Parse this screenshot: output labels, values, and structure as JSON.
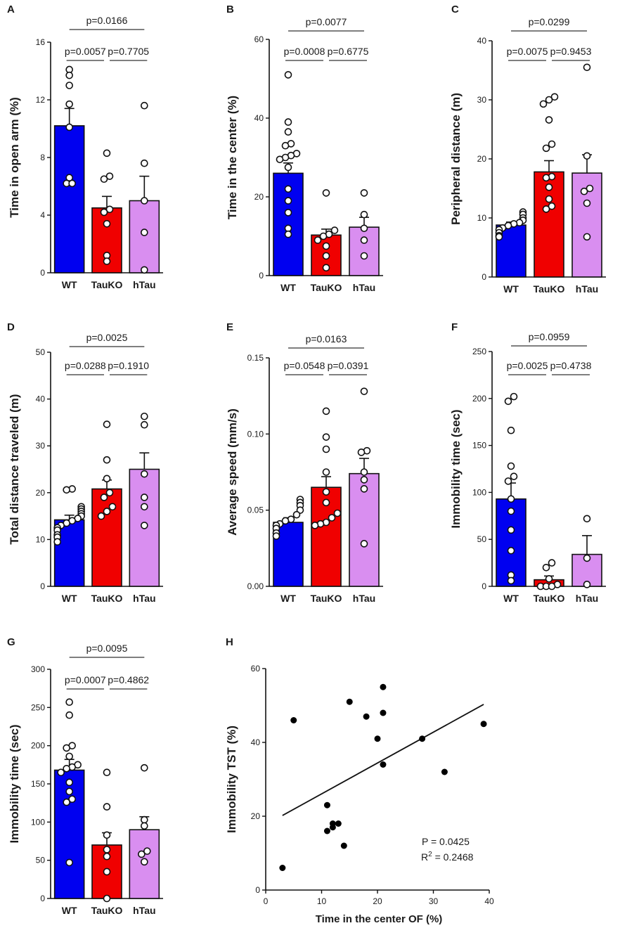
{
  "colors": {
    "wt": "#0000f0",
    "tauko": "#f00000",
    "htau": "#d98ef0",
    "line": "#111111",
    "bracket": "#555555"
  },
  "chart_data": [
    {
      "panel": "A",
      "type": "bar",
      "ylabel": "Time in open arm (%)",
      "ylim": [
        0,
        16
      ],
      "yticks": [
        0,
        4,
        8,
        12,
        16
      ],
      "ytick_labels": [
        "0",
        "4",
        "8",
        "12",
        "16"
      ],
      "categories": [
        "WT",
        "TauKO",
        "hTau"
      ],
      "values": [
        10.2,
        4.5,
        5.0
      ],
      "errors": [
        1.2,
        0.8,
        1.7
      ],
      "points": [
        [
          14.1,
          13.7,
          13.0,
          11.7,
          10.1,
          6.6,
          6.2,
          6.2
        ],
        [
          8.3,
          6.7,
          6.5,
          4.4,
          4.2,
          3.4,
          1.2,
          0.8
        ],
        [
          11.6,
          7.6,
          5.0,
          2.8,
          0.2
        ]
      ],
      "comparisons": [
        {
          "from": 0,
          "to": 2,
          "label": "p=0.0166"
        },
        {
          "from": 0,
          "to": 1,
          "label": "p=0.0057"
        },
        {
          "from": 1,
          "to": 2,
          "label": "p=0.7705"
        }
      ]
    },
    {
      "panel": "B",
      "type": "bar",
      "ylabel": "Time in the center (%)",
      "ylim": [
        0,
        60
      ],
      "yticks": [
        0,
        20,
        40,
        60
      ],
      "ytick_labels": [
        "0",
        "20",
        "40",
        "60"
      ],
      "categories": [
        "WT",
        "TauKO",
        "hTau"
      ],
      "values": [
        26.0,
        10.3,
        12.3
      ],
      "errors": [
        2.6,
        1.5,
        2.5
      ],
      "points": [
        [
          51.0,
          39.0,
          36.5,
          33.5,
          33.0,
          31.0,
          30.5,
          30.0,
          29.5,
          27.5,
          22.0,
          19.0,
          16.0,
          12.0,
          10.5
        ],
        [
          21.0,
          11.5,
          10.5,
          10.0,
          9.0,
          7.5,
          5.0,
          2.0
        ],
        [
          21.0,
          15.5,
          12.0,
          9.0,
          5.0
        ]
      ],
      "comparisons": [
        {
          "from": 0,
          "to": 2,
          "label": "p=0.0077"
        },
        {
          "from": 0,
          "to": 1,
          "label": "p=0.0008"
        },
        {
          "from": 1,
          "to": 2,
          "label": "p=0.6775"
        }
      ]
    },
    {
      "panel": "C",
      "type": "bar",
      "ylabel": "Peripheral distance (m)",
      "ylim": [
        0,
        40
      ],
      "yticks": [
        0,
        10,
        20,
        30,
        40
      ],
      "ytick_labels": [
        "0",
        "10",
        "20",
        "30",
        "40"
      ],
      "categories": [
        "WT",
        "TauKO",
        "hTau"
      ],
      "values": [
        8.8,
        17.8,
        17.6
      ],
      "errors": [
        0.5,
        1.9,
        3.1
      ],
      "points": [
        [
          11.0,
          10.6,
          10.0,
          9.6,
          9.2,
          9.0,
          8.7,
          8.3,
          8.0,
          7.5,
          7.0,
          6.8
        ],
        [
          30.5,
          30.0,
          29.3,
          26.6,
          22.5,
          21.8,
          17.0,
          16.8,
          15.2,
          13.2,
          12.0,
          11.5
        ],
        [
          35.5,
          20.5,
          15.0,
          14.5,
          12.5,
          6.8
        ]
      ],
      "comparisons": [
        {
          "from": 0,
          "to": 2,
          "label": "p=0.0299"
        },
        {
          "from": 0,
          "to": 1,
          "label": "p=0.0075"
        },
        {
          "from": 1,
          "to": 2,
          "label": "p=0.9453"
        }
      ]
    },
    {
      "panel": "D",
      "type": "bar",
      "ylabel": "Total distance traveled (m)",
      "ylim": [
        0,
        50
      ],
      "yticks": [
        0,
        10,
        20,
        30,
        40,
        50
      ],
      "ytick_labels": [
        "0",
        "10",
        "20",
        "30",
        "40",
        "50"
      ],
      "categories": [
        "WT",
        "TauKO",
        "hTau"
      ],
      "values": [
        14.2,
        20.8,
        25.0
      ],
      "errors": [
        1.0,
        1.9,
        3.5
      ],
      "points": [
        [
          20.8,
          20.6,
          17.0,
          16.5,
          16.0,
          15.5,
          15.0,
          14.5,
          14.0,
          13.5,
          13.0,
          12.5,
          12.0,
          11.0,
          10.5,
          9.5
        ],
        [
          34.6,
          27.0,
          23.0,
          20.0,
          19.0,
          17.0,
          16.0,
          15.0
        ],
        [
          36.3,
          34.5,
          24.0,
          19.0,
          17.0,
          13.0
        ]
      ],
      "comparisons": [
        {
          "from": 0,
          "to": 2,
          "label": "p=0.0025"
        },
        {
          "from": 0,
          "to": 1,
          "label": "p=0.0288"
        },
        {
          "from": 1,
          "to": 2,
          "label": "p=0.1910"
        }
      ]
    },
    {
      "panel": "E",
      "type": "bar",
      "ylabel": "Average speed (mm/s)",
      "ylim": [
        0,
        0.15
      ],
      "yticks": [
        0,
        0.05,
        0.1,
        0.15
      ],
      "ytick_labels": [
        "0.00",
        "0.05",
        "0.10",
        "0.15"
      ],
      "categories": [
        "WT",
        "TauKO",
        "hTau"
      ],
      "values": [
        0.042,
        0.065,
        0.074
      ],
      "errors": [
        0.003,
        0.007,
        0.01
      ],
      "points": [
        [
          0.057,
          0.055,
          0.053,
          0.05,
          0.047,
          0.044,
          0.043,
          0.041,
          0.04,
          0.038,
          0.035,
          0.033
        ],
        [
          0.115,
          0.098,
          0.09,
          0.075,
          0.062,
          0.055,
          0.048,
          0.045,
          0.042,
          0.041,
          0.04
        ],
        [
          0.128,
          0.089,
          0.088,
          0.075,
          0.07,
          0.064,
          0.028
        ]
      ],
      "comparisons": [
        {
          "from": 0,
          "to": 2,
          "label": "p=0.0163"
        },
        {
          "from": 0,
          "to": 1,
          "label": "p=0.0548"
        },
        {
          "from": 1,
          "to": 2,
          "label": "p=0.0391"
        }
      ]
    },
    {
      "panel": "F",
      "type": "bar",
      "ylabel": "Immobility time (sec)",
      "ylim": [
        0,
        250
      ],
      "yticks": [
        0,
        50,
        100,
        150,
        200,
        250
      ],
      "ytick_labels": [
        "0",
        "50",
        "100",
        "150",
        "200",
        "250"
      ],
      "categories": [
        "WT",
        "TauKO",
        "hTau"
      ],
      "values": [
        93,
        7,
        34
      ],
      "errors": [
        17,
        4,
        20
      ],
      "points": [
        [
          202,
          197,
          166,
          128,
          117,
          112,
          93,
          80,
          60,
          38,
          12,
          6
        ],
        [
          25,
          20,
          8,
          2,
          0,
          0,
          0
        ],
        [
          72,
          30,
          2
        ]
      ],
      "comparisons": [
        {
          "from": 0,
          "to": 2,
          "label": "p=0.0959"
        },
        {
          "from": 0,
          "to": 1,
          "label": "p=0.0025"
        },
        {
          "from": 1,
          "to": 2,
          "label": "p=0.4738"
        }
      ]
    },
    {
      "panel": "G",
      "type": "bar",
      "ylabel": "Immobility time (sec)",
      "ylim": [
        0,
        300
      ],
      "yticks": [
        0,
        50,
        100,
        150,
        200,
        250,
        300
      ],
      "ytick_labels": [
        "0",
        "50",
        "100",
        "150",
        "200",
        "250",
        "300"
      ],
      "categories": [
        "WT",
        "TauKO",
        "hTau"
      ],
      "values": [
        168,
        70,
        90
      ],
      "errors": [
        14,
        16,
        17
      ],
      "points": [
        [
          257,
          240,
          200,
          197,
          186,
          175,
          172,
          170,
          165,
          152,
          140,
          130,
          126,
          47
        ],
        [
          165,
          120,
          83,
          64,
          55,
          35,
          0
        ],
        [
          171,
          103,
          95,
          62,
          58,
          48
        ]
      ],
      "comparisons": [
        {
          "from": 0,
          "to": 2,
          "label": "p=0.0095"
        },
        {
          "from": 0,
          "to": 1,
          "label": "p=0.0007"
        },
        {
          "from": 1,
          "to": 2,
          "label": "p=0.4862"
        }
      ]
    },
    {
      "panel": "H",
      "type": "scatter",
      "xlabel": "Time in the center OF (%)",
      "ylabel": "Immobility TST (%)",
      "xlim": [
        0,
        40
      ],
      "ylim": [
        0,
        60
      ],
      "xticks": [
        0,
        10,
        20,
        30,
        40
      ],
      "xtick_labels": [
        "0",
        "10",
        "20",
        "30",
        "40"
      ],
      "yticks": [
        0,
        20,
        40,
        60
      ],
      "ytick_labels": [
        "0",
        "20",
        "40",
        "60"
      ],
      "points": [
        [
          3,
          6
        ],
        [
          5,
          46
        ],
        [
          11,
          23
        ],
        [
          11,
          16
        ],
        [
          12,
          18
        ],
        [
          12,
          17
        ],
        [
          13,
          18
        ],
        [
          14,
          12
        ],
        [
          15,
          51
        ],
        [
          18,
          47
        ],
        [
          20,
          41
        ],
        [
          21,
          55
        ],
        [
          21,
          48
        ],
        [
          21,
          34
        ],
        [
          28,
          41
        ],
        [
          32,
          32
        ],
        [
          39,
          45
        ]
      ],
      "fit": {
        "x": [
          3,
          39
        ],
        "y": [
          20.2,
          50.3
        ]
      },
      "stats": {
        "p_text": "P = 0.0425",
        "r2_prefix": "R",
        "r2_sup": "2",
        "r2_value": " = 0.2468"
      }
    }
  ]
}
